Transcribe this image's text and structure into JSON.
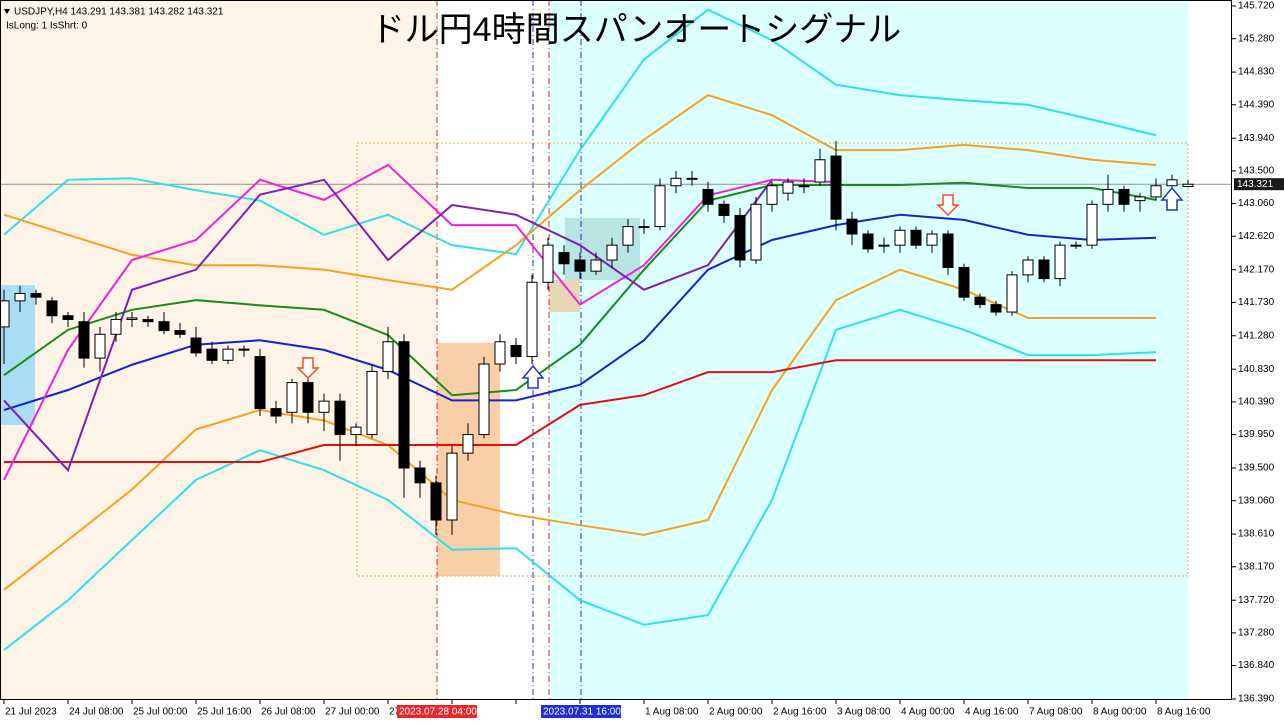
{
  "header": {
    "info": "USDJPY,H4  143.291 143.381 143.282 143.321",
    "flags": "IsLong: 1 IsShrt: 0"
  },
  "chart_data": {
    "type": "candlestick",
    "title": "ドル円4時間スパンオートシグナル",
    "ylim": [
      136.39,
      145.72
    ],
    "yticks": [
      {
        "value": 145.72,
        "label": "145.720"
      },
      {
        "value": 145.28,
        "label": "145.280"
      },
      {
        "value": 144.83,
        "label": "144.830"
      },
      {
        "value": 144.39,
        "label": "144.390"
      },
      {
        "value": 143.94,
        "label": "143.940"
      },
      {
        "value": 143.5,
        "label": "143.500"
      },
      {
        "value": 143.06,
        "label": "143.060"
      },
      {
        "value": 142.62,
        "label": "142.620"
      },
      {
        "value": 142.17,
        "label": "142.170"
      },
      {
        "value": 141.73,
        "label": "141.730"
      },
      {
        "value": 141.28,
        "label": "141.280"
      },
      {
        "value": 140.83,
        "label": "140.830"
      },
      {
        "value": 140.39,
        "label": "140.390"
      },
      {
        "value": 139.95,
        "label": "139.950"
      },
      {
        "value": 139.5,
        "label": "139.500"
      },
      {
        "value": 139.06,
        "label": "139.060"
      },
      {
        "value": 138.61,
        "label": "138.610"
      },
      {
        "value": 138.17,
        "label": "138.170"
      },
      {
        "value": 137.72,
        "label": "137.720"
      },
      {
        "value": 137.28,
        "label": "137.280"
      },
      {
        "value": 136.84,
        "label": "136.840"
      },
      {
        "value": 136.39,
        "label": "136.390"
      }
    ],
    "categories": [
      "21 Jul 2023",
      "24 Jul 08:00",
      "25 Jul 00:00",
      "25 Jul 16:00",
      "26 Jul 08:00",
      "27 Jul 00:00",
      "27",
      null,
      null,
      null,
      "1 Aug 08:00",
      "2 Aug 00:00",
      "2 Aug 16:00",
      "3 Aug 08:00",
      "4 Aug 00:00",
      "4 Aug 16:00",
      "7 Aug 08:00",
      "8 Aug 00:00",
      "8 Aug 16:00"
    ],
    "markers": [
      {
        "label": "2023.07.28 04:00",
        "color": "#e8262b"
      },
      {
        "label": "2023.07.31 16:00",
        "color": "#1c2fd6"
      }
    ],
    "last_price": 143.321,
    "up_color": "#ffffff",
    "down_color": "#000000",
    "ohlc": [
      [
        141.4,
        141.9,
        140.9,
        141.75
      ],
      [
        141.75,
        141.95,
        141.6,
        141.85
      ],
      [
        141.85,
        141.9,
        141.7,
        141.8
      ],
      [
        141.75,
        141.8,
        141.45,
        141.55
      ],
      [
        141.55,
        141.6,
        141.4,
        141.5
      ],
      [
        141.47,
        141.6,
        140.85,
        140.98
      ],
      [
        140.98,
        141.4,
        140.8,
        141.3
      ],
      [
        141.3,
        141.6,
        141.2,
        141.5
      ],
      [
        141.5,
        141.6,
        141.4,
        141.52
      ],
      [
        141.5,
        141.55,
        141.4,
        141.47
      ],
      [
        141.47,
        141.6,
        141.3,
        141.35
      ],
      [
        141.35,
        141.45,
        141.25,
        141.3
      ],
      [
        141.25,
        141.4,
        141.0,
        141.05
      ],
      [
        141.1,
        141.2,
        140.9,
        140.95
      ],
      [
        140.95,
        141.15,
        140.9,
        141.1
      ],
      [
        141.1,
        141.15,
        141.0,
        141.1
      ],
      [
        141.0,
        141.1,
        140.2,
        140.3
      ],
      [
        140.3,
        140.4,
        140.1,
        140.2
      ],
      [
        140.25,
        140.7,
        140.1,
        140.65
      ],
      [
        140.65,
        140.8,
        140.1,
        140.25
      ],
      [
        140.25,
        140.5,
        140.0,
        140.4
      ],
      [
        140.4,
        140.5,
        139.6,
        139.95
      ],
      [
        139.95,
        140.1,
        139.8,
        140.05
      ],
      [
        139.95,
        140.9,
        139.9,
        140.8
      ],
      [
        140.8,
        141.4,
        140.7,
        141.2
      ],
      [
        141.2,
        141.3,
        139.1,
        139.5
      ],
      [
        139.5,
        139.6,
        139.1,
        139.3
      ],
      [
        139.3,
        139.4,
        138.6,
        138.8
      ],
      [
        138.8,
        139.8,
        138.6,
        139.7
      ],
      [
        139.7,
        140.1,
        139.6,
        139.95
      ],
      [
        139.95,
        141.0,
        139.9,
        140.9
      ],
      [
        140.9,
        141.3,
        140.8,
        141.2
      ],
      [
        141.15,
        141.25,
        140.9,
        141.0
      ],
      [
        141.0,
        142.1,
        140.9,
        142.0
      ],
      [
        142.0,
        142.6,
        141.9,
        142.5
      ],
      [
        142.4,
        142.5,
        142.1,
        142.25
      ],
      [
        142.3,
        142.4,
        142.05,
        142.15
      ],
      [
        142.15,
        142.4,
        142.1,
        142.3
      ],
      [
        142.3,
        142.6,
        142.2,
        142.5
      ],
      [
        142.5,
        142.85,
        142.4,
        142.75
      ],
      [
        142.75,
        142.85,
        142.65,
        142.75
      ],
      [
        142.75,
        143.4,
        142.7,
        143.3
      ],
      [
        143.3,
        143.5,
        143.2,
        143.4
      ],
      [
        143.4,
        143.5,
        143.3,
        143.4
      ],
      [
        143.25,
        143.35,
        142.95,
        143.05
      ],
      [
        143.05,
        143.1,
        142.8,
        142.9
      ],
      [
        142.9,
        143.0,
        142.2,
        142.3
      ],
      [
        142.3,
        143.15,
        142.25,
        143.05
      ],
      [
        143.05,
        143.35,
        142.95,
        143.3
      ],
      [
        143.2,
        143.4,
        143.1,
        143.35
      ],
      [
        143.3,
        143.4,
        143.2,
        143.3
      ],
      [
        143.35,
        143.8,
        143.3,
        143.65
      ],
      [
        143.7,
        143.9,
        142.7,
        142.85
      ],
      [
        142.85,
        142.95,
        142.5,
        142.65
      ],
      [
        142.65,
        142.7,
        142.4,
        142.45
      ],
      [
        142.5,
        142.6,
        142.4,
        142.5
      ],
      [
        142.5,
        142.75,
        142.4,
        142.7
      ],
      [
        142.7,
        142.75,
        142.45,
        142.5
      ],
      [
        142.5,
        142.7,
        142.4,
        142.65
      ],
      [
        142.65,
        142.7,
        142.1,
        142.2
      ],
      [
        142.2,
        142.25,
        141.75,
        141.8
      ],
      [
        141.8,
        141.85,
        141.65,
        141.7
      ],
      [
        141.7,
        141.75,
        141.55,
        141.6
      ],
      [
        141.6,
        142.15,
        141.55,
        142.1
      ],
      [
        142.1,
        142.35,
        142.0,
        142.3
      ],
      [
        142.3,
        142.35,
        142.0,
        142.05
      ],
      [
        142.05,
        142.55,
        141.95,
        142.5
      ],
      [
        142.5,
        142.55,
        142.45,
        142.5
      ],
      [
        142.5,
        143.1,
        142.45,
        143.05
      ],
      [
        143.05,
        143.45,
        142.95,
        143.25
      ],
      [
        143.25,
        143.3,
        142.95,
        143.05
      ],
      [
        143.1,
        143.2,
        142.95,
        143.15
      ],
      [
        143.15,
        143.4,
        143.1,
        143.3
      ],
      [
        143.3,
        143.45,
        143.25,
        143.38
      ],
      [
        143.29,
        143.38,
        143.28,
        143.32
      ]
    ],
    "series": [
      {
        "color": "#2fe0ec",
        "values": [
          142.64,
          143.38,
          143.4,
          143.24,
          143.1,
          142.64,
          142.91,
          142.5,
          142.38,
          143.78,
          145.0,
          145.67,
          145.26,
          144.66,
          144.52,
          144.45,
          144.39,
          144.19,
          143.98
        ]
      },
      {
        "color": "#2fe0ec",
        "values": [
          137.05,
          137.72,
          138.53,
          139.34,
          139.74,
          139.47,
          139.07,
          138.4,
          138.42,
          137.72,
          137.39,
          137.52,
          139.07,
          141.36,
          141.63,
          141.36,
          141.02,
          141.02,
          141.06
        ]
      },
      {
        "color": "#f5a31c",
        "values": [
          142.91,
          142.64,
          142.37,
          142.23,
          142.23,
          142.17,
          142.03,
          141.9,
          142.5,
          143.24,
          143.92,
          144.52,
          144.25,
          143.78,
          143.78,
          143.85,
          143.78,
          143.65,
          143.58
        ]
      },
      {
        "color": "#f5a31c",
        "values": [
          137.86,
          138.53,
          139.21,
          140.02,
          140.28,
          140.14,
          139.81,
          139.07,
          138.87,
          138.73,
          138.6,
          138.8,
          140.55,
          141.76,
          142.17,
          141.9,
          141.52,
          141.52,
          141.52
        ]
      },
      {
        "color": "#1a8a1a",
        "values": [
          140.75,
          141.36,
          141.63,
          141.76,
          141.69,
          141.63,
          141.29,
          140.48,
          140.55,
          141.16,
          142.17,
          143.1,
          143.31,
          143.31,
          143.31,
          143.34,
          143.27,
          143.27,
          143.11
        ]
      },
      {
        "color": "#1424c8",
        "values": [
          140.28,
          140.55,
          140.89,
          141.16,
          141.22,
          141.09,
          140.82,
          140.41,
          140.41,
          140.62,
          141.22,
          142.17,
          142.57,
          142.77,
          142.91,
          142.84,
          142.64,
          142.57,
          142.6
        ]
      },
      {
        "color": "#e01010",
        "values": [
          139.58,
          139.58,
          139.58,
          139.58,
          139.58,
          139.81,
          139.81,
          139.81,
          139.81,
          140.35,
          140.48,
          140.79,
          140.79,
          140.95,
          140.95,
          140.95,
          140.95,
          140.95,
          140.95
        ]
      },
      {
        "color": "#ee22dd",
        "values": [
          139.34,
          141.09,
          142.3,
          142.57,
          143.38,
          143.11,
          143.58,
          142.77,
          142.77,
          141.7,
          142.23,
          143.17,
          143.38,
          143.35,
          null,
          null,
          null,
          null,
          null
        ]
      },
      {
        "color": "#7a22b8",
        "values": [
          140.41,
          139.47,
          141.9,
          142.17,
          143.18,
          143.38,
          142.3,
          143.04,
          142.91,
          142.5,
          141.9,
          142.23,
          143.38,
          null,
          null,
          null,
          null,
          null,
          null
        ]
      }
    ]
  }
}
